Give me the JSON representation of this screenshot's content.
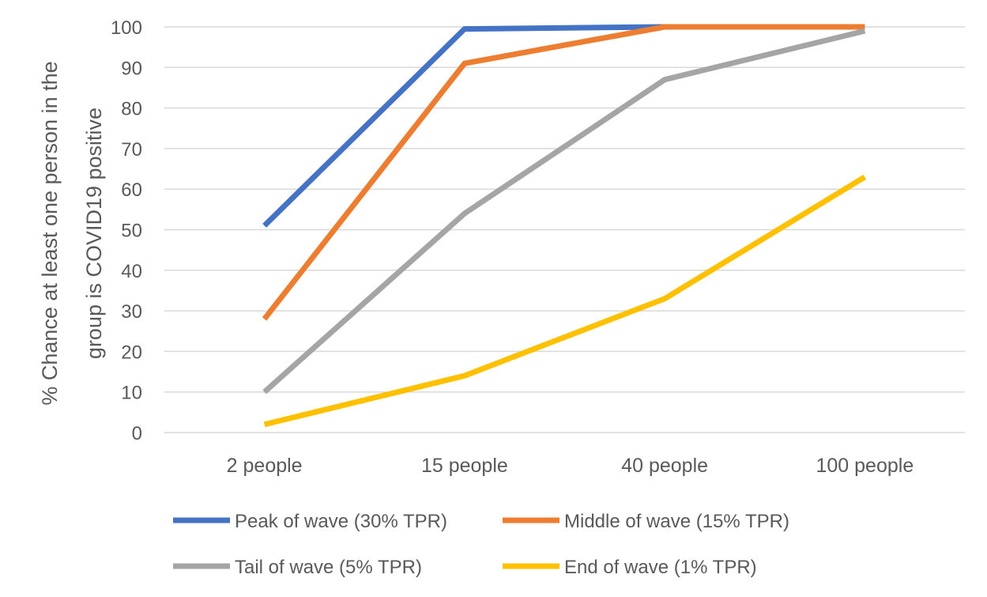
{
  "chart_data": {
    "type": "line",
    "categories": [
      "2 people",
      "15 people",
      "40 people",
      "100 people"
    ],
    "ylabel": [
      "% Chance at least one person in the",
      "group is COVID19 positive"
    ],
    "ylim": [
      0,
      100
    ],
    "yticks": [
      0,
      10,
      20,
      30,
      40,
      50,
      60,
      70,
      80,
      90,
      100
    ],
    "grid": "horizontal",
    "legend_position": "bottom",
    "series": [
      {
        "name": "Peak of wave (30% TPR)",
        "color": "#4472C4",
        "values": [
          51,
          99.5,
          100,
          100
        ]
      },
      {
        "name": "Middle of wave (15% TPR)",
        "color": "#ED7D31",
        "values": [
          28,
          91,
          100,
          100
        ]
      },
      {
        "name": "Tail of wave (5% TPR)",
        "color": "#A5A5A5",
        "values": [
          10,
          54,
          87,
          99
        ]
      },
      {
        "name": "End of wave (1% TPR)",
        "color": "#FFC000",
        "values": [
          2,
          14,
          33,
          63
        ]
      }
    ]
  }
}
